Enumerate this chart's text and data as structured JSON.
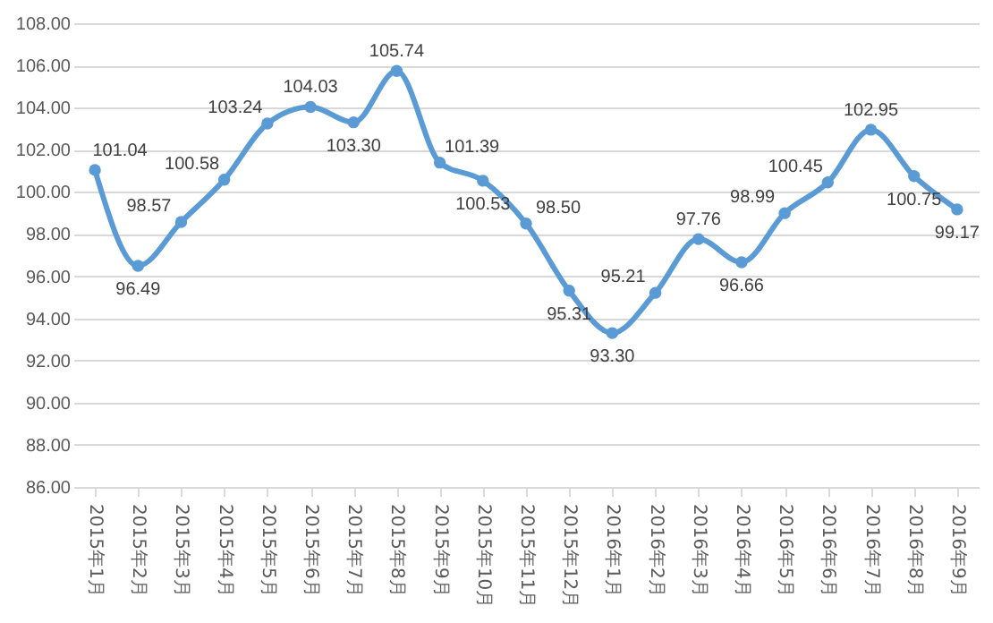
{
  "chart_data": {
    "type": "line",
    "categories": [
      "2015年1月",
      "2015年2月",
      "2015年3月",
      "2015年4月",
      "2015年5月",
      "2015年6月",
      "2015年7月",
      "2015年8月",
      "2015年9月",
      "2015年10月",
      "2015年11月",
      "2015年12月",
      "2016年1月",
      "2016年2月",
      "2016年3月",
      "2016年4月",
      "2016年5月",
      "2016年6月",
      "2016年7月",
      "2016年8月",
      "2016年9月"
    ],
    "series": [
      {
        "color": "#5b9bd5",
        "values": [
          101.04,
          96.49,
          98.57,
          100.58,
          103.24,
          104.03,
          103.3,
          105.74,
          101.39,
          100.53,
          98.5,
          95.31,
          93.3,
          95.21,
          97.76,
          96.66,
          98.99,
          100.45,
          102.95,
          100.75,
          99.17
        ],
        "value_labels": [
          "101.04",
          "96.49",
          "98.57",
          "100.58",
          "103.24",
          "104.03",
          "103.30",
          "105.74",
          "101.39",
          "100.53",
          "98.50",
          "95.31",
          "93.30",
          "95.21",
          "97.76",
          "96.66",
          "98.99",
          "100.45",
          "102.95",
          "100.75",
          "99.17"
        ]
      }
    ],
    "ylim": [
      86,
      108
    ],
    "yticks": [
      {
        "value": 86,
        "label": "86.00"
      },
      {
        "value": 88,
        "label": "88.00"
      },
      {
        "value": 90,
        "label": "90.00"
      },
      {
        "value": 92,
        "label": "92.00"
      },
      {
        "value": 94,
        "label": "94.00"
      },
      {
        "value": 96,
        "label": "96.00"
      },
      {
        "value": 98,
        "label": "98.00"
      },
      {
        "value": 100,
        "label": "100.00"
      },
      {
        "value": 102,
        "label": "102.00"
      },
      {
        "value": 104,
        "label": "104.00"
      },
      {
        "value": 106,
        "label": "106.00"
      },
      {
        "value": 108,
        "label": "108.00"
      }
    ],
    "grid": "y",
    "marker": "circle",
    "line_style": "solid",
    "legend": false
  }
}
